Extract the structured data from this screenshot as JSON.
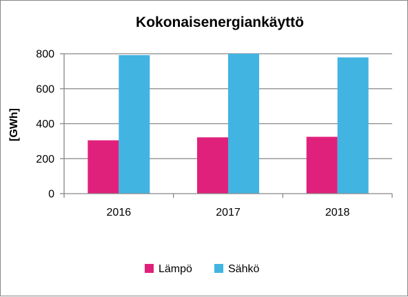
{
  "chart_data": {
    "type": "bar",
    "title": "Kokonaisenergiankäyttö",
    "xlabel": "",
    "ylabel": "[GWh]",
    "categories": [
      "2016",
      "2017",
      "2018"
    ],
    "series": [
      {
        "name": "Lämpö",
        "values": [
          305,
          322,
          325
        ],
        "color": "#e0217b"
      },
      {
        "name": "Sähkö",
        "values": [
          792,
          800,
          779
        ],
        "color": "#41b4e2"
      }
    ],
    "ylim": [
      0,
      800
    ],
    "yticks": [
      "0",
      "200",
      "400",
      "600",
      "800"
    ],
    "grid": true,
    "legend_position": "bottom"
  }
}
